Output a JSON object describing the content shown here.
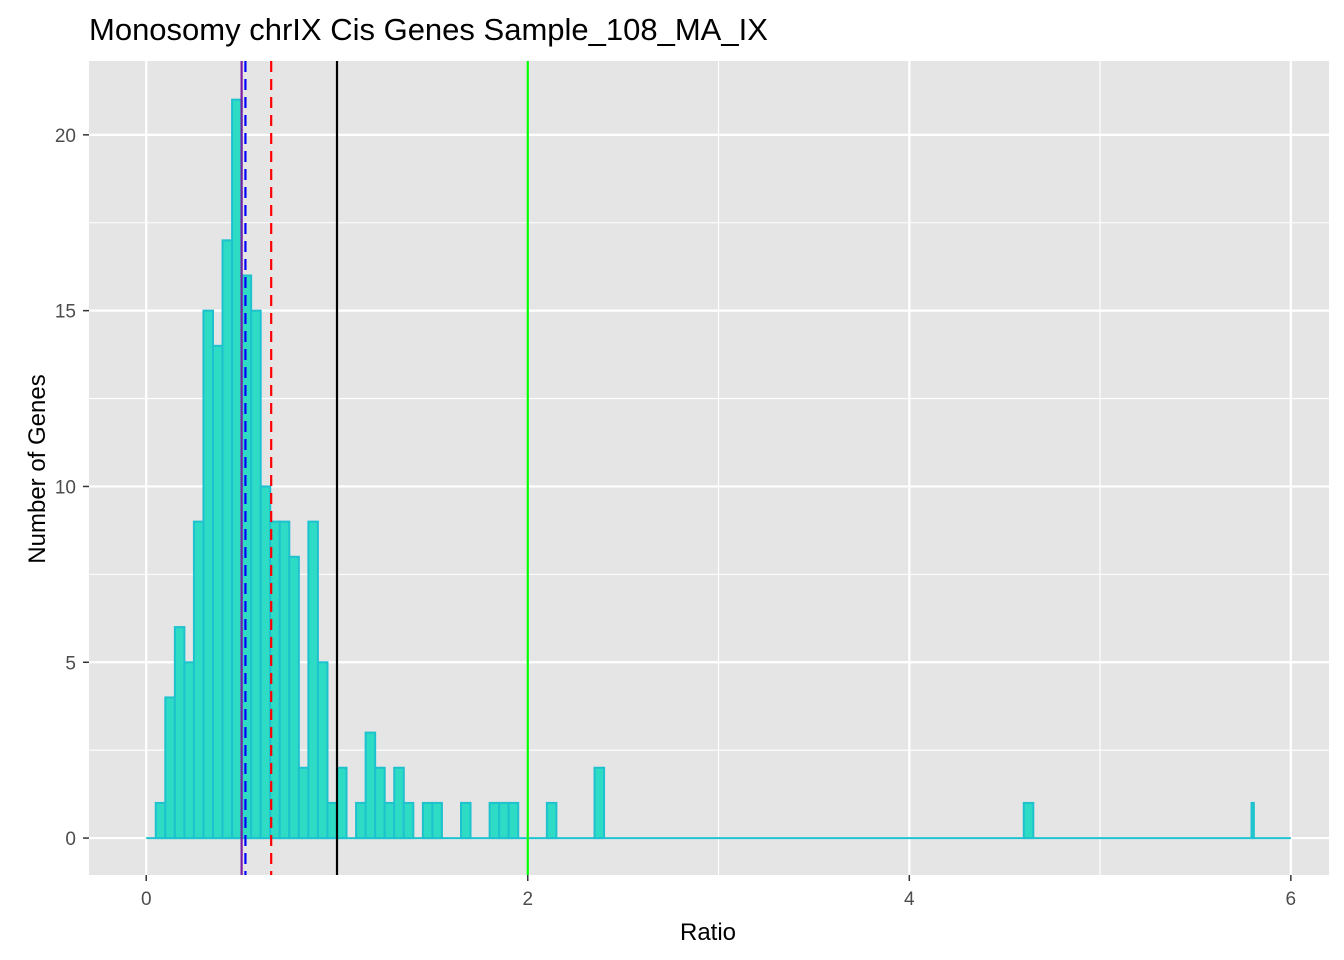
{
  "chart_data": {
    "type": "bar",
    "title": "Monosomy chrIX Cis Genes Sample_108_MA_IX",
    "xlabel": "Ratio",
    "ylabel": "Number of Genes",
    "xlim": [
      -0.3,
      6.2
    ],
    "ylim": [
      -1.05,
      22.1
    ],
    "x_ticks": [
      0,
      2,
      4,
      6
    ],
    "y_ticks": [
      0,
      5,
      10,
      15,
      20
    ],
    "grid": true,
    "bin_width": 0.05,
    "bins": [
      {
        "x": 0.025,
        "count": 0
      },
      {
        "x": 0.075,
        "count": 1
      },
      {
        "x": 0.125,
        "count": 4
      },
      {
        "x": 0.175,
        "count": 6
      },
      {
        "x": 0.225,
        "count": 5
      },
      {
        "x": 0.275,
        "count": 9
      },
      {
        "x": 0.325,
        "count": 15
      },
      {
        "x": 0.375,
        "count": 14
      },
      {
        "x": 0.425,
        "count": 17
      },
      {
        "x": 0.475,
        "count": 21
      },
      {
        "x": 0.525,
        "count": 16
      },
      {
        "x": 0.575,
        "count": 15
      },
      {
        "x": 0.625,
        "count": 10
      },
      {
        "x": 0.675,
        "count": 9
      },
      {
        "x": 0.725,
        "count": 9
      },
      {
        "x": 0.775,
        "count": 8
      },
      {
        "x": 0.825,
        "count": 2
      },
      {
        "x": 0.875,
        "count": 9
      },
      {
        "x": 0.925,
        "count": 5
      },
      {
        "x": 0.975,
        "count": 1
      },
      {
        "x": 1.025,
        "count": 2
      },
      {
        "x": 1.075,
        "count": 0
      },
      {
        "x": 1.125,
        "count": 1
      },
      {
        "x": 1.175,
        "count": 3
      },
      {
        "x": 1.225,
        "count": 2
      },
      {
        "x": 1.275,
        "count": 1
      },
      {
        "x": 1.325,
        "count": 2
      },
      {
        "x": 1.375,
        "count": 1
      },
      {
        "x": 1.425,
        "count": 0
      },
      {
        "x": 1.475,
        "count": 1
      },
      {
        "x": 1.525,
        "count": 1
      },
      {
        "x": 1.675,
        "count": 1
      },
      {
        "x": 1.825,
        "count": 1
      },
      {
        "x": 1.875,
        "count": 1
      },
      {
        "x": 1.925,
        "count": 1
      },
      {
        "x": 2.125,
        "count": 1
      },
      {
        "x": 2.375,
        "count": 2
      },
      {
        "x": 4.625,
        "count": 1
      },
      {
        "x": 5.8,
        "count": 1,
        "width": 0.012
      }
    ],
    "baseline_range": [
      0,
      6
    ],
    "reference_lines": [
      {
        "x": 0.5,
        "color": "#7B1FA2",
        "style": "solid"
      },
      {
        "x": 0.52,
        "color": "#0000FF",
        "style": "dashed"
      },
      {
        "x": 0.655,
        "color": "#FF0000",
        "style": "dashed"
      },
      {
        "x": 1.0,
        "color": "#000000",
        "style": "solid"
      },
      {
        "x": 2.0,
        "color": "#00FF00",
        "style": "solid"
      }
    ],
    "colors": {
      "panel_bg": "#E5E5E5",
      "grid": "#FFFFFF",
      "bar_fill": "#2EDBC4",
      "bar_outline": "#1EC2CF"
    }
  }
}
